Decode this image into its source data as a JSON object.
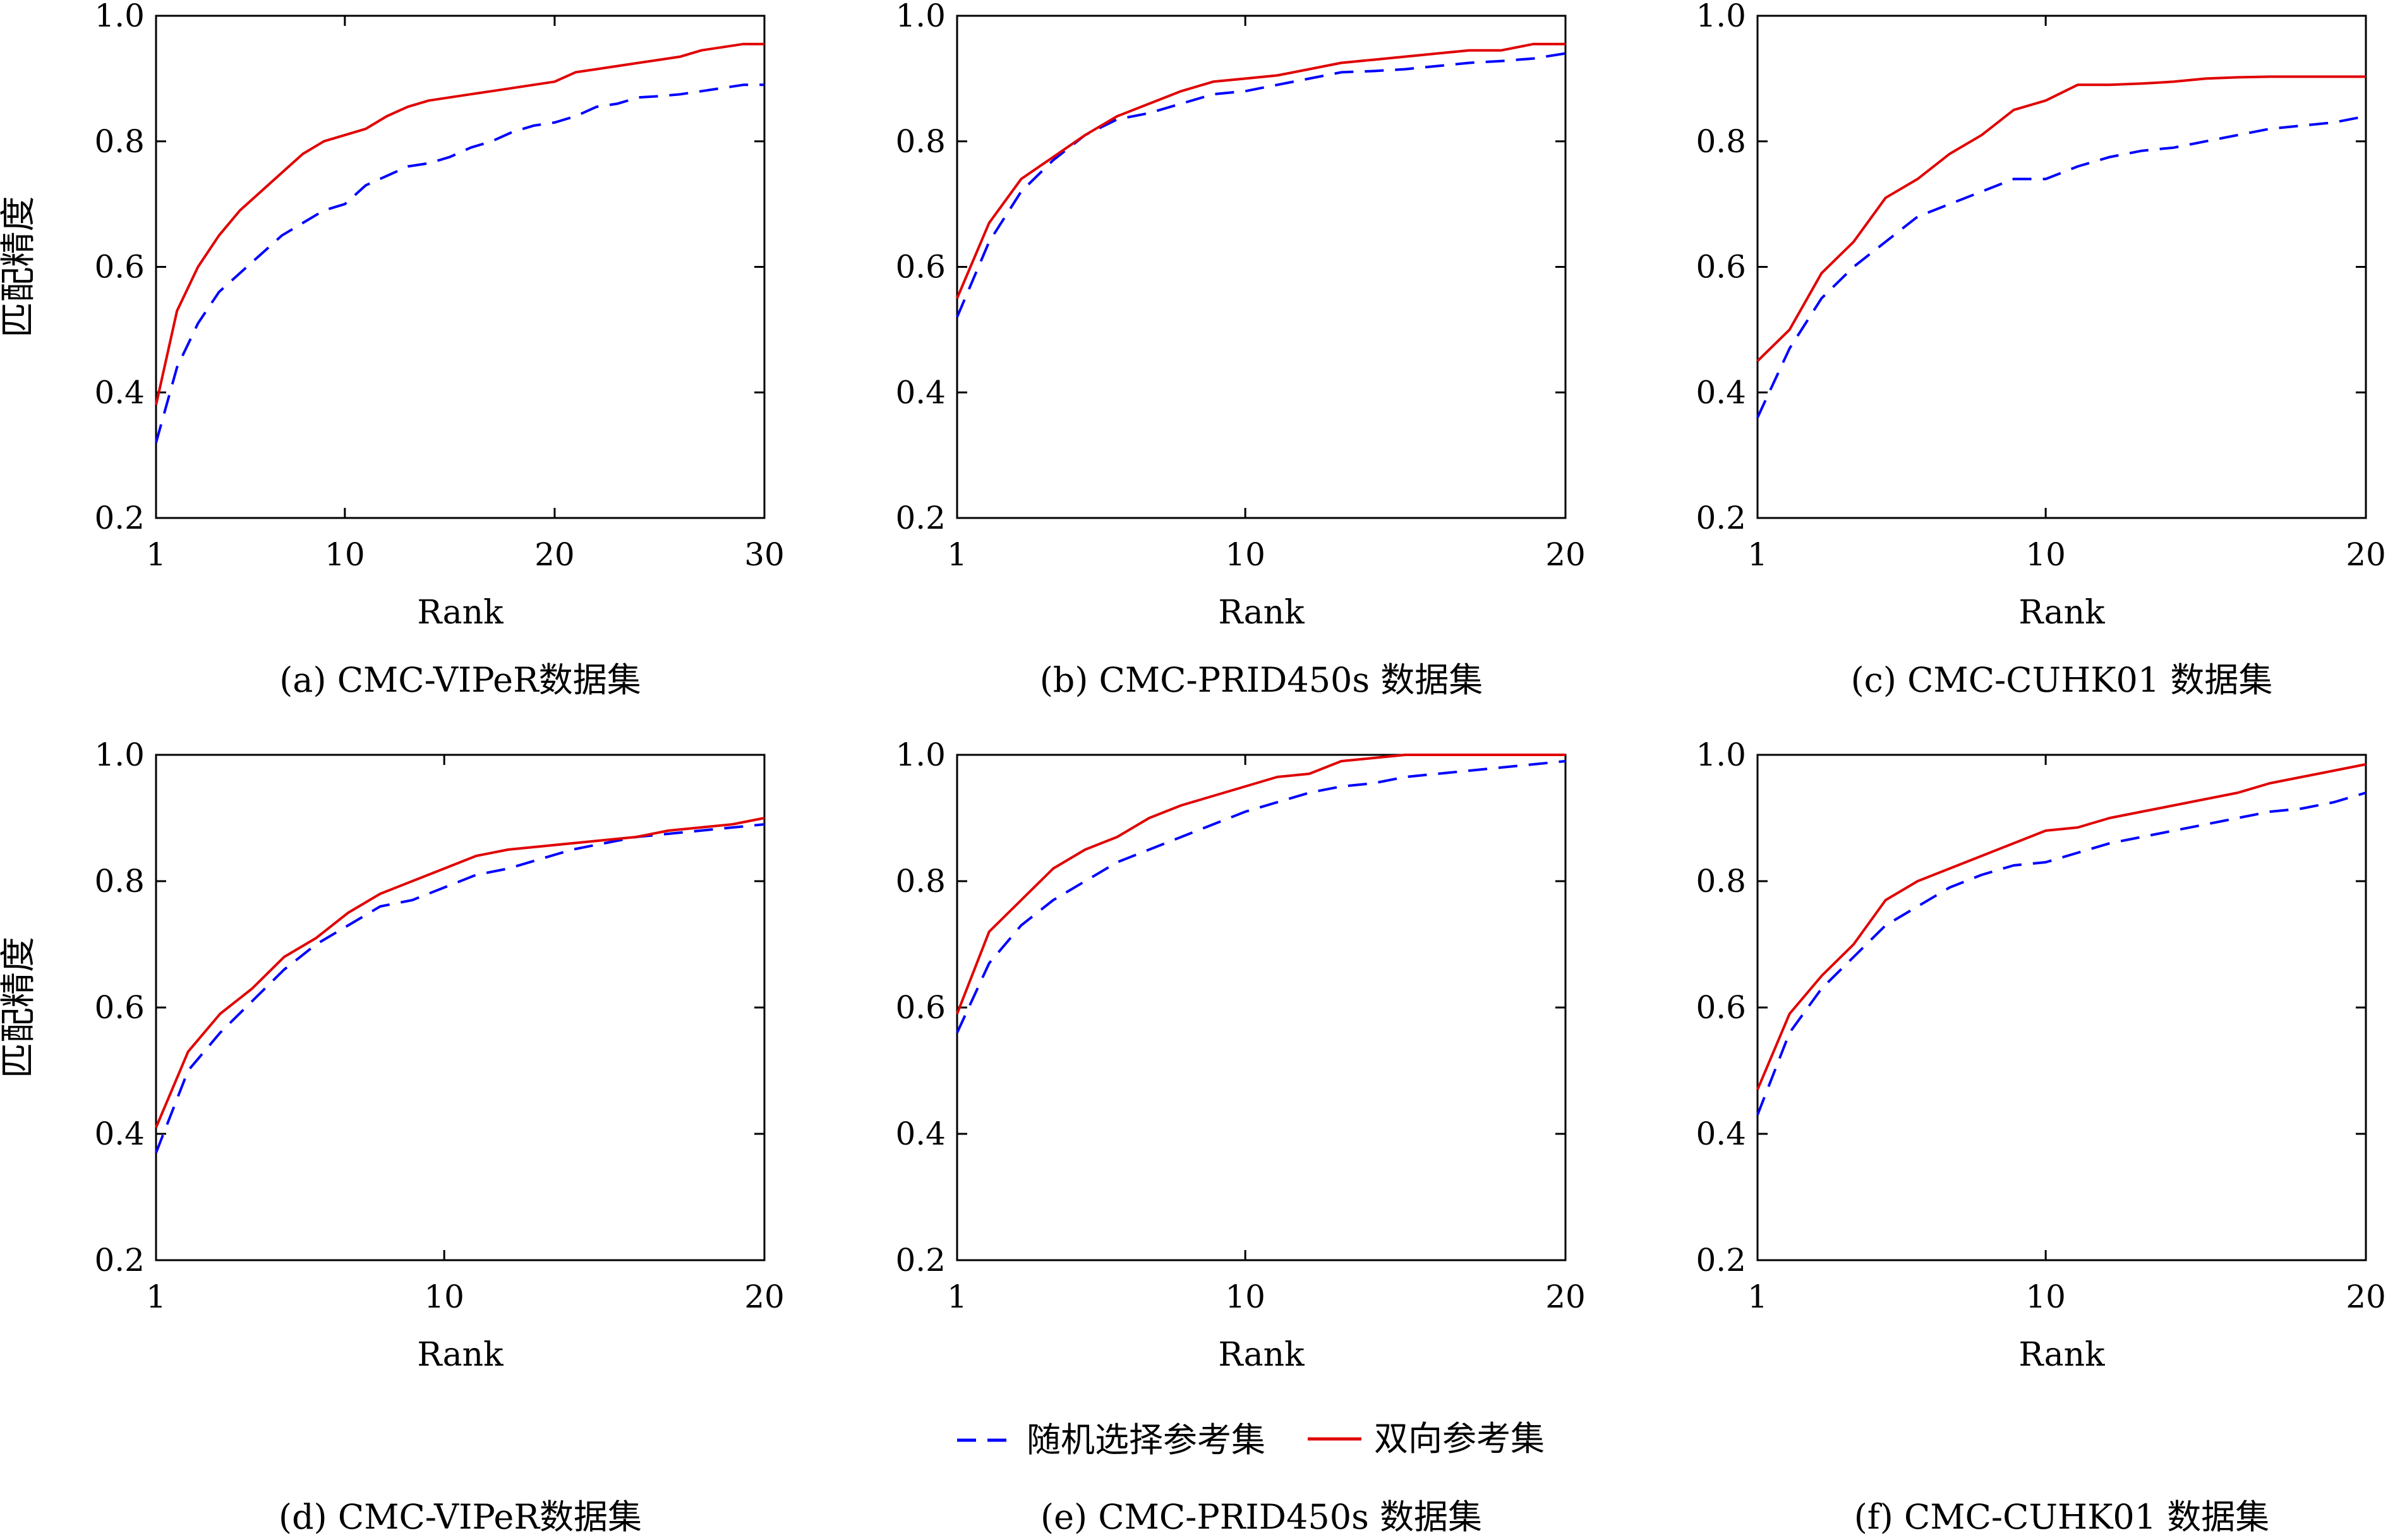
{
  "colors": {
    "random": "#0000ff",
    "bidirectional": "#e00000",
    "axes": "#000000"
  },
  "legend": {
    "placement": "bottom-center",
    "random_label": "随机选择参考集",
    "bidirectional_label": "双向参考集"
  },
  "chart_data": [
    {
      "type": "line",
      "caption": "(a) CMC-VIPeR数据集",
      "xlabel": "Rank",
      "ylabel": "匹配精度",
      "xlim": [
        1,
        30
      ],
      "ylim": [
        0.2,
        1.0
      ],
      "xticks": [
        1,
        10,
        20,
        30
      ],
      "yticks": [
        "0.2",
        "0.4",
        "0.6",
        "0.8",
        "1.0"
      ],
      "grid": false,
      "series": [
        {
          "name": "随机选择参考集",
          "style": "dashed",
          "x": [
            1,
            2,
            3,
            4,
            5,
            6,
            7,
            8,
            9,
            10,
            11,
            12,
            13,
            14,
            15,
            16,
            17,
            18,
            19,
            20,
            21,
            22,
            23,
            24,
            25,
            26,
            27,
            28,
            29,
            30
          ],
          "y": [
            0.32,
            0.44,
            0.51,
            0.56,
            0.59,
            0.62,
            0.65,
            0.67,
            0.69,
            0.7,
            0.73,
            0.745,
            0.76,
            0.765,
            0.775,
            0.79,
            0.8,
            0.815,
            0.825,
            0.83,
            0.84,
            0.855,
            0.86,
            0.87,
            0.872,
            0.875,
            0.88,
            0.885,
            0.89,
            0.89
          ]
        },
        {
          "name": "双向参考集",
          "style": "solid",
          "x": [
            1,
            2,
            3,
            4,
            5,
            6,
            7,
            8,
            9,
            10,
            11,
            12,
            13,
            14,
            15,
            16,
            17,
            18,
            19,
            20,
            21,
            22,
            23,
            24,
            25,
            26,
            27,
            28,
            29,
            30
          ],
          "y": [
            0.38,
            0.53,
            0.6,
            0.65,
            0.69,
            0.72,
            0.75,
            0.78,
            0.8,
            0.81,
            0.82,
            0.84,
            0.855,
            0.865,
            0.87,
            0.875,
            0.88,
            0.885,
            0.89,
            0.895,
            0.91,
            0.915,
            0.92,
            0.925,
            0.93,
            0.935,
            0.945,
            0.95,
            0.955,
            0.955
          ]
        }
      ]
    },
    {
      "type": "line",
      "caption": "(b) CMC-PRID450s 数据集",
      "xlabel": "Rank",
      "ylabel": "",
      "xlim": [
        1,
        20
      ],
      "ylim": [
        0.2,
        1.0
      ],
      "xticks": [
        1,
        10,
        20
      ],
      "yticks": [
        "0.2",
        "0.4",
        "0.6",
        "0.8",
        "1.0"
      ],
      "grid": false,
      "series": [
        {
          "name": "随机选择参考集",
          "style": "dashed",
          "x": [
            1,
            2,
            3,
            4,
            5,
            6,
            7,
            8,
            9,
            10,
            11,
            12,
            13,
            14,
            15,
            16,
            17,
            18,
            19,
            20
          ],
          "y": [
            0.52,
            0.64,
            0.72,
            0.77,
            0.81,
            0.835,
            0.845,
            0.86,
            0.875,
            0.88,
            0.89,
            0.9,
            0.91,
            0.912,
            0.915,
            0.92,
            0.925,
            0.928,
            0.932,
            0.94
          ]
        },
        {
          "name": "双向参考集",
          "style": "solid",
          "x": [
            1,
            2,
            3,
            4,
            5,
            6,
            7,
            8,
            9,
            10,
            11,
            12,
            13,
            14,
            15,
            16,
            17,
            18,
            19,
            20
          ],
          "y": [
            0.55,
            0.67,
            0.74,
            0.775,
            0.81,
            0.84,
            0.86,
            0.88,
            0.895,
            0.9,
            0.905,
            0.915,
            0.925,
            0.93,
            0.935,
            0.94,
            0.945,
            0.945,
            0.955,
            0.955
          ]
        }
      ]
    },
    {
      "type": "line",
      "caption": "(c) CMC-CUHK01 数据集",
      "xlabel": "Rank",
      "ylabel": "",
      "xlim": [
        1,
        20
      ],
      "ylim": [
        0.2,
        1.0
      ],
      "xticks": [
        1,
        10,
        20
      ],
      "yticks": [
        "0.2",
        "0.4",
        "0.6",
        "0.8",
        "1.0"
      ],
      "grid": false,
      "series": [
        {
          "name": "随机选择参考集",
          "style": "dashed",
          "x": [
            1,
            2,
            3,
            4,
            5,
            6,
            7,
            8,
            9,
            10,
            11,
            12,
            13,
            14,
            15,
            16,
            17,
            18,
            19,
            20
          ],
          "y": [
            0.36,
            0.47,
            0.55,
            0.6,
            0.64,
            0.68,
            0.7,
            0.72,
            0.74,
            0.74,
            0.76,
            0.775,
            0.785,
            0.79,
            0.8,
            0.81,
            0.82,
            0.825,
            0.83,
            0.84
          ]
        },
        {
          "name": "双向参考集",
          "style": "solid",
          "x": [
            1,
            2,
            3,
            4,
            5,
            6,
            7,
            8,
            9,
            10,
            11,
            12,
            13,
            14,
            15,
            16,
            17,
            18,
            19,
            20
          ],
          "y": [
            0.45,
            0.5,
            0.59,
            0.64,
            0.71,
            0.74,
            0.78,
            0.81,
            0.85,
            0.865,
            0.89,
            0.89,
            0.892,
            0.895,
            0.9,
            0.902,
            0.903,
            0.903,
            0.903,
            0.903
          ]
        }
      ]
    },
    {
      "type": "line",
      "caption": "(d) CMC-VIPeR数据集",
      "xlabel": "Rank",
      "ylabel": "匹配精度",
      "xlim": [
        1,
        20
      ],
      "ylim": [
        0.2,
        1.0
      ],
      "xticks": [
        1,
        10,
        20
      ],
      "yticks": [
        "0.2",
        "0.4",
        "0.6",
        "0.8",
        "1.0"
      ],
      "grid": false,
      "series": [
        {
          "name": "随机选择参考集",
          "style": "dashed",
          "x": [
            1,
            2,
            3,
            4,
            5,
            6,
            7,
            8,
            9,
            10,
            11,
            12,
            13,
            14,
            15,
            16,
            17,
            18,
            19,
            20
          ],
          "y": [
            0.37,
            0.5,
            0.56,
            0.61,
            0.66,
            0.7,
            0.73,
            0.76,
            0.77,
            0.79,
            0.81,
            0.82,
            0.835,
            0.85,
            0.86,
            0.87,
            0.875,
            0.88,
            0.885,
            0.89
          ]
        },
        {
          "name": "双向参考集",
          "style": "solid",
          "x": [
            1,
            2,
            3,
            4,
            5,
            6,
            7,
            8,
            9,
            10,
            11,
            12,
            13,
            14,
            15,
            16,
            17,
            18,
            19,
            20
          ],
          "y": [
            0.41,
            0.53,
            0.59,
            0.63,
            0.68,
            0.71,
            0.75,
            0.78,
            0.8,
            0.82,
            0.84,
            0.85,
            0.855,
            0.86,
            0.865,
            0.87,
            0.88,
            0.885,
            0.89,
            0.9
          ]
        }
      ]
    },
    {
      "type": "line",
      "caption": "(e) CMC-PRID450s 数据集",
      "xlabel": "Rank",
      "ylabel": "",
      "xlim": [
        1,
        20
      ],
      "ylim": [
        0.2,
        1.0
      ],
      "xticks": [
        1,
        10,
        20
      ],
      "yticks": [
        "0.2",
        "0.4",
        "0.6",
        "0.8",
        "1.0"
      ],
      "grid": false,
      "series": [
        {
          "name": "随机选择参考集",
          "style": "dashed",
          "x": [
            1,
            2,
            3,
            4,
            5,
            6,
            7,
            8,
            9,
            10,
            11,
            12,
            13,
            14,
            15,
            16,
            17,
            18,
            19,
            20
          ],
          "y": [
            0.56,
            0.67,
            0.73,
            0.77,
            0.8,
            0.83,
            0.85,
            0.87,
            0.89,
            0.91,
            0.925,
            0.94,
            0.95,
            0.955,
            0.965,
            0.97,
            0.975,
            0.98,
            0.985,
            0.99
          ]
        },
        {
          "name": "双向参考集",
          "style": "solid",
          "x": [
            1,
            2,
            3,
            4,
            5,
            6,
            7,
            8,
            9,
            10,
            11,
            12,
            13,
            14,
            15,
            16,
            17,
            18,
            19,
            20
          ],
          "y": [
            0.59,
            0.72,
            0.77,
            0.82,
            0.85,
            0.87,
            0.9,
            0.92,
            0.935,
            0.95,
            0.965,
            0.97,
            0.99,
            0.995,
            1.0,
            1.0,
            1.0,
            1.0,
            1.0,
            1.0
          ]
        }
      ]
    },
    {
      "type": "line",
      "caption": "(f) CMC-CUHK01 数据集",
      "xlabel": "Rank",
      "ylabel": "",
      "xlim": [
        1,
        20
      ],
      "ylim": [
        0.2,
        1.0
      ],
      "xticks": [
        1,
        10,
        20
      ],
      "yticks": [
        "0.2",
        "0.4",
        "0.6",
        "0.8",
        "1.0"
      ],
      "grid": false,
      "series": [
        {
          "name": "随机选择参考集",
          "style": "dashed",
          "x": [
            1,
            2,
            3,
            4,
            5,
            6,
            7,
            8,
            9,
            10,
            11,
            12,
            13,
            14,
            15,
            16,
            17,
            18,
            19,
            20
          ],
          "y": [
            0.43,
            0.56,
            0.63,
            0.68,
            0.73,
            0.76,
            0.79,
            0.81,
            0.825,
            0.83,
            0.845,
            0.86,
            0.87,
            0.88,
            0.89,
            0.9,
            0.91,
            0.915,
            0.925,
            0.94
          ]
        },
        {
          "name": "双向参考集",
          "style": "solid",
          "x": [
            1,
            2,
            3,
            4,
            5,
            6,
            7,
            8,
            9,
            10,
            11,
            12,
            13,
            14,
            15,
            16,
            17,
            18,
            19,
            20
          ],
          "y": [
            0.47,
            0.59,
            0.65,
            0.7,
            0.77,
            0.8,
            0.82,
            0.84,
            0.86,
            0.88,
            0.885,
            0.9,
            0.91,
            0.92,
            0.93,
            0.94,
            0.955,
            0.965,
            0.975,
            0.985
          ]
        }
      ]
    }
  ]
}
